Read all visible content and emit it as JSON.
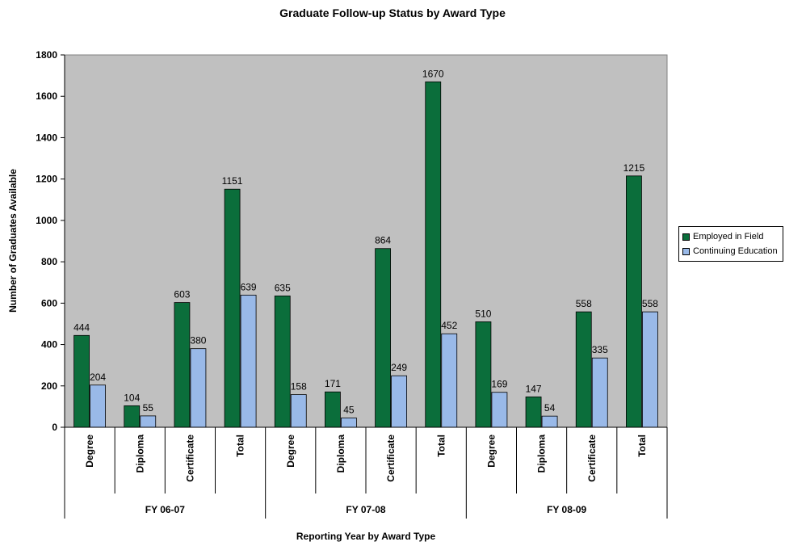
{
  "chart_data": {
    "type": "bar",
    "title": "Graduate Follow-up Status by Award Type",
    "xlabel": "Reporting Year by Award Type",
    "ylabel": "Number of Graduates Available",
    "ylim": [
      0,
      1800
    ],
    "yticks": [
      0,
      200,
      400,
      600,
      800,
      1000,
      1200,
      1400,
      1600,
      1800
    ],
    "grid": false,
    "legend_position": "right",
    "groups": [
      "FY 06-07",
      "FY 07-08",
      "FY 08-09"
    ],
    "categories": [
      "Degree",
      "Diploma",
      "Certificate",
      "Total",
      "Degree",
      "Diploma",
      "Certificate",
      "Total",
      "Degree",
      "Diploma",
      "Certificate",
      "Total"
    ],
    "series": [
      {
        "name": "Employed in Field",
        "color": "#0b6e3b",
        "values": [
          444,
          104,
          603,
          1151,
          635,
          171,
          864,
          1670,
          510,
          147,
          558,
          1215
        ]
      },
      {
        "name": "Continuing Education",
        "color": "#99b9e8",
        "values": [
          204,
          55,
          380,
          639,
          158,
          45,
          249,
          452,
          169,
          54,
          335,
          558
        ]
      }
    ]
  }
}
